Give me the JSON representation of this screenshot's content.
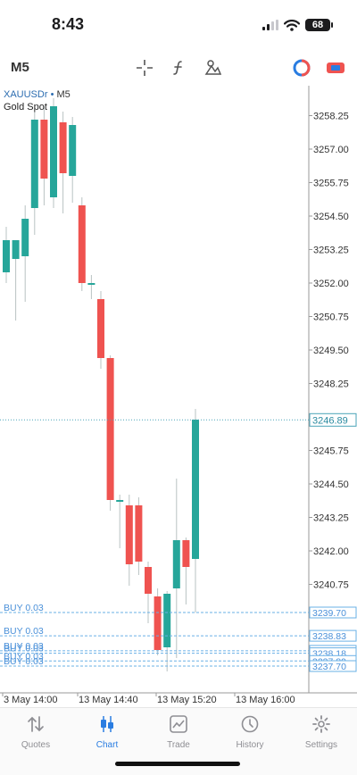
{
  "status_bar": {
    "time": "8:43",
    "battery": "68"
  },
  "toolbar": {
    "timeframe": "M5",
    "icons": [
      "crosshair-icon",
      "indicators-icon",
      "objects-icon",
      "trade-circle-icon",
      "switch-chart-icon"
    ]
  },
  "chart": {
    "symbol": "XAUUSDr",
    "separator": "•",
    "timeframe": "M5",
    "description": "Gold Spot",
    "price_labels": [
      "3258.25",
      "3257.00",
      "3255.75",
      "3254.50",
      "3253.25",
      "3252.00",
      "3250.75",
      "3249.50",
      "3248.25",
      "3245.75",
      "3244.50",
      "3243.25",
      "3242.00",
      "3240.75"
    ],
    "current_price": "3246.89",
    "time_labels": [
      "3 May 14:00",
      "13 May 14:40",
      "13 May 15:20",
      "13 May 16:00"
    ],
    "orders": [
      {
        "label": "BUY 0.03",
        "price": "3239.70"
      },
      {
        "label": "BUY 0.03",
        "price": "3238.83"
      },
      {
        "label": "BUY 0.03",
        "price": "3238.27"
      },
      {
        "label": "BUY 0.03",
        "price": "3238.18"
      },
      {
        "label": "BUY 0.03",
        "price": "3237.89"
      },
      {
        "label": "BUY 0.03",
        "price": "3237.70"
      }
    ]
  },
  "chart_data": {
    "type": "candlestick",
    "ylim": [
      3236.9,
      3259.3
    ],
    "colors": {
      "up": "#26a69a",
      "down": "#ef5350"
    },
    "candles": [
      {
        "o": 3252.4,
        "h": 3254.1,
        "l": 3252.0,
        "c": 3253.6
      },
      {
        "o": 3252.9,
        "h": 3253.6,
        "l": 3250.6,
        "c": 3253.6
      },
      {
        "o": 3253.0,
        "h": 3254.9,
        "l": 3251.3,
        "c": 3254.4
      },
      {
        "o": 3254.8,
        "h": 3258.4,
        "l": 3253.8,
        "c": 3258.1
      },
      {
        "o": 3258.1,
        "h": 3258.6,
        "l": 3254.9,
        "c": 3255.9
      },
      {
        "o": 3255.2,
        "h": 3258.9,
        "l": 3254.8,
        "c": 3258.6
      },
      {
        "o": 3258.0,
        "h": 3258.4,
        "l": 3254.6,
        "c": 3256.1
      },
      {
        "o": 3256.0,
        "h": 3258.2,
        "l": 3255.0,
        "c": 3257.9
      },
      {
        "o": 3254.9,
        "h": 3255.2,
        "l": 3251.7,
        "c": 3252.0
      },
      {
        "o": 3252.0,
        "h": 3252.3,
        "l": 3251.4,
        "c": 3252.0
      },
      {
        "o": 3251.4,
        "h": 3251.7,
        "l": 3248.8,
        "c": 3249.2
      },
      {
        "o": 3249.2,
        "h": 3249.3,
        "l": 3243.5,
        "c": 3243.9
      },
      {
        "o": 3243.9,
        "h": 3244.1,
        "l": 3242.1,
        "c": 3243.9
      },
      {
        "o": 3243.7,
        "h": 3244.1,
        "l": 3240.7,
        "c": 3241.5
      },
      {
        "o": 3243.7,
        "h": 3244.0,
        "l": 3241.1,
        "c": 3241.6
      },
      {
        "o": 3241.4,
        "h": 3241.6,
        "l": 3239.3,
        "c": 3240.4
      },
      {
        "o": 3240.3,
        "h": 3240.6,
        "l": 3238.1,
        "c": 3238.3
      },
      {
        "o": 3238.4,
        "h": 3240.5,
        "l": 3237.5,
        "c": 3240.4
      },
      {
        "o": 3240.6,
        "h": 3244.7,
        "l": 3238.0,
        "c": 3242.4
      },
      {
        "o": 3242.4,
        "h": 3242.5,
        "l": 3240.0,
        "c": 3241.4
      },
      {
        "o": 3241.7,
        "h": 3247.3,
        "l": 3239.7,
        "c": 3246.9
      }
    ]
  },
  "tabs": [
    {
      "name": "quotes",
      "label": "Quotes",
      "active": false
    },
    {
      "name": "chart",
      "label": "Chart",
      "active": true
    },
    {
      "name": "trade",
      "label": "Trade",
      "active": false
    },
    {
      "name": "history",
      "label": "History",
      "active": false
    },
    {
      "name": "settings",
      "label": "Settings",
      "active": false
    }
  ]
}
